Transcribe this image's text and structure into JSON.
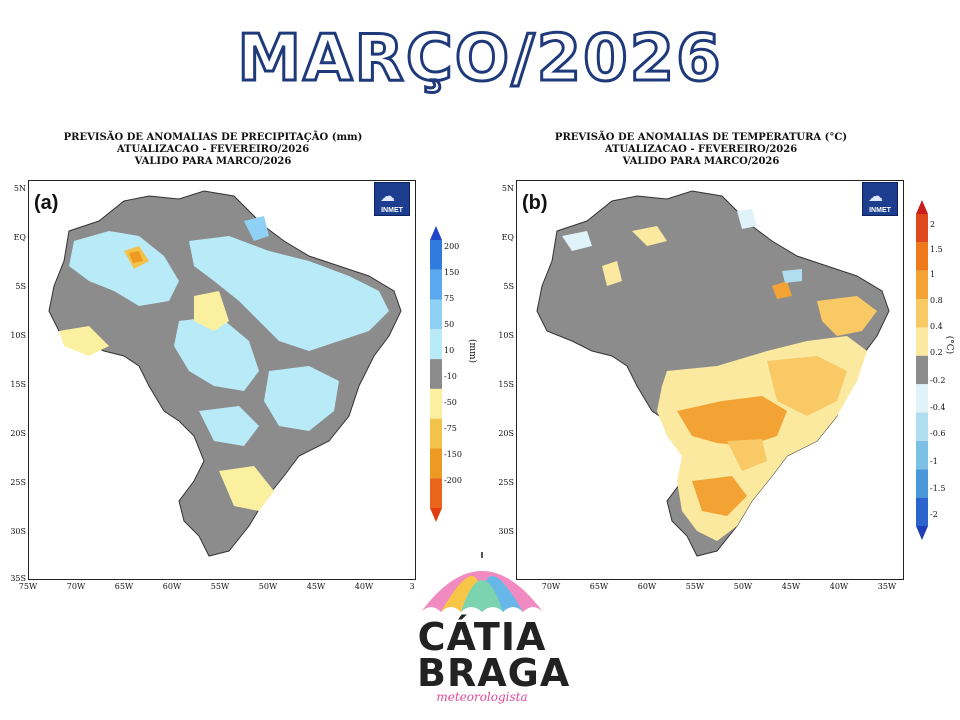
{
  "page": {
    "title": "MARÇO/2026"
  },
  "maps": [
    {
      "letter": "(a)",
      "header": [
        "PREVISÃO DE ANOMALIAS DE PRECIPITAÇÃO (mm)",
        "ATUALIZACAO - FEVEREIRO/2026",
        "VALIDO PARA MARCO/2026"
      ],
      "logo_text": "INMET",
      "units": "(mm)",
      "legend": {
        "labels": [
          "200",
          "150",
          "75",
          "50",
          "10",
          "-10",
          "-50",
          "-75",
          "-150",
          "-200"
        ],
        "colors": [
          "#1e45c8",
          "#2f7be0",
          "#5aa9ee",
          "#8fd0f5",
          "#b9eaf7",
          "#8c8c8c",
          "#fbf0a0",
          "#f3c24a",
          "#ee9a22",
          "#e8651a",
          "#e03c10"
        ]
      },
      "lat_labels": [
        "5N",
        "EQ",
        "5S",
        "10S",
        "15S",
        "20S",
        "25S",
        "30S",
        "35S"
      ],
      "lon_labels": [
        "75W",
        "70W",
        "65W",
        "60W",
        "55W",
        "50W",
        "45W",
        "40W",
        "3"
      ]
    },
    {
      "letter": "(b)",
      "header": [
        "PREVISÃO DE ANOMALIAS DE TEMPERATURA (°C)",
        "ATUALIZACAO - FEVEREIRO/2026",
        "VALIDO PARA MARCO/2026"
      ],
      "logo_text": "INMET",
      "units": "(°C)",
      "legend": {
        "labels": [
          "2",
          "1.5",
          "1",
          "0.8",
          "0.4",
          "0.2",
          "-0.2",
          "-0.4",
          "-0.6",
          "-1",
          "-1.5",
          "-2"
        ],
        "colors": [
          "#c81e1e",
          "#e0481e",
          "#ee7a1a",
          "#f3a334",
          "#f8c964",
          "#fbe9a0",
          "#8c8c8c",
          "#dff3f8",
          "#b0def0",
          "#7cc0e6",
          "#4a98da",
          "#2a64cc",
          "#1e3eb8"
        ]
      },
      "lat_labels": [
        "5N",
        "EQ",
        "5S",
        "10S",
        "15S",
        "20S",
        "25S",
        "30S"
      ],
      "lon_labels": [
        "70W",
        "65W",
        "60W",
        "55W",
        "50W",
        "45W",
        "40W",
        "35W"
      ]
    }
  ],
  "brand": {
    "name_line1": "CÁTIA",
    "name_line2": "BRAGA",
    "tagline": "meteorologista"
  }
}
